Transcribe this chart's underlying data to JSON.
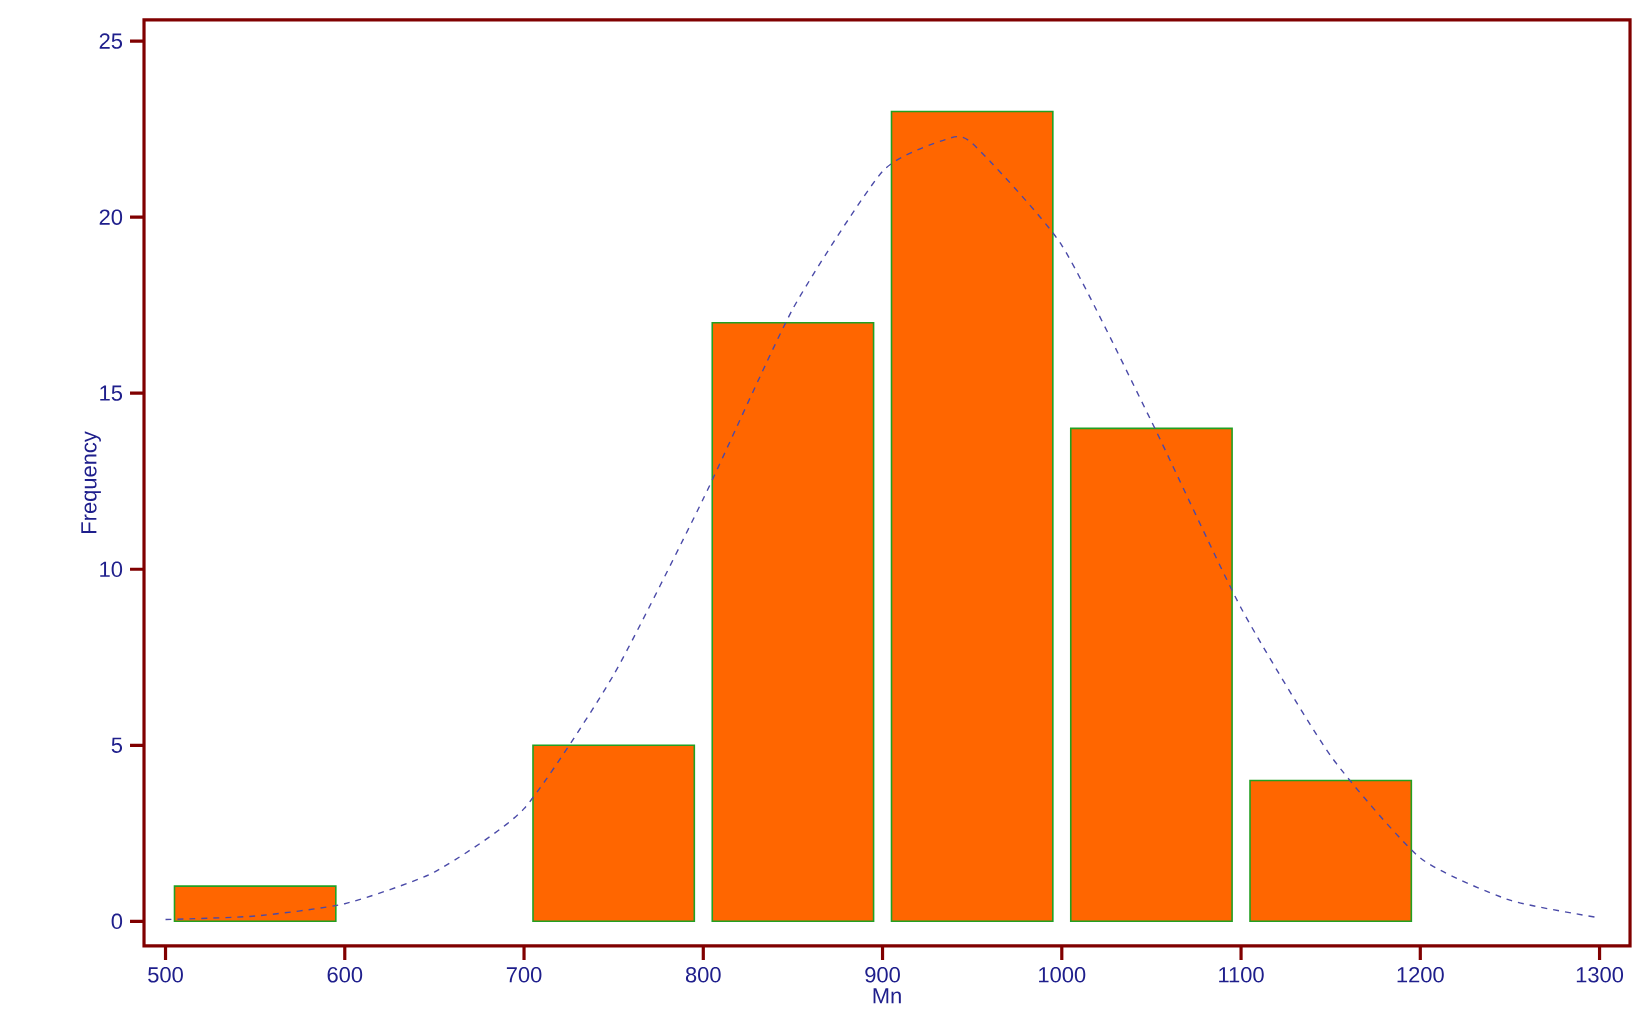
{
  "chart_data": {
    "type": "histogram",
    "xlabel": "Mn",
    "ylabel": "Frequency",
    "bins": [
      500,
      600,
      700,
      800,
      900,
      1000,
      1100,
      1200
    ],
    "values": [
      1,
      0,
      5,
      17,
      23,
      14,
      4
    ],
    "color": "#ff6600",
    "series": [
      {
        "type": "line",
        "color": "#4a4aa8",
        "line_style": "dashed",
        "x": [
          500,
          550,
          600,
          650,
          700,
          750,
          800,
          850,
          900,
          935,
          950,
          1000,
          1050,
          1100,
          1150,
          1200,
          1250,
          1300
        ],
        "values": [
          0.05,
          0.15,
          0.5,
          1.4,
          3.2,
          7.0,
          12.0,
          17.4,
          21.3,
          22.2,
          22.1,
          19.2,
          14.2,
          8.9,
          4.7,
          1.8,
          0.6,
          0.1
        ]
      }
    ],
    "xlim": [
      488,
      1317
    ],
    "ylim": [
      -0.7,
      25.6
    ],
    "xticks": [
      500,
      600,
      700,
      800,
      900,
      1000,
      1100,
      1200,
      1300
    ],
    "yticks": [
      0,
      5,
      10,
      15,
      20,
      25
    ]
  }
}
